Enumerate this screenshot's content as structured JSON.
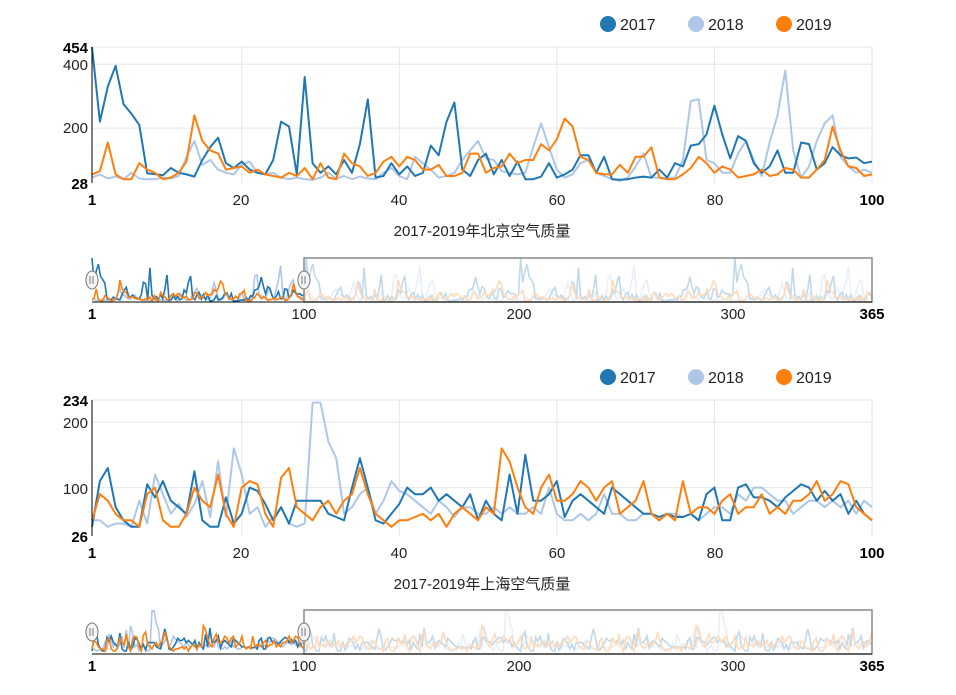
{
  "colors": {
    "2017": "#1f77b4",
    "2018": "#aec7e8",
    "2019": "#ff7f0e"
  },
  "chart_data": [
    {
      "type": "line",
      "title": "2017-2019年北京空气质量",
      "legend": [
        "2017",
        "2018",
        "2019"
      ],
      "xlim": [
        1,
        100
      ],
      "ylim": [
        28,
        454
      ],
      "x_ticks": [
        "1",
        "20",
        "40",
        "60",
        "80",
        "100"
      ],
      "y_ticks": [
        "28",
        "200",
        "400",
        "454"
      ],
      "brush": {
        "range": [
          1,
          365
        ],
        "selection": [
          1,
          100
        ],
        "ticks": [
          "1",
          "100",
          "200",
          "300",
          "365"
        ]
      },
      "series": [
        {
          "name": "2017",
          "values": [
            454,
            220,
            330,
            395,
            275,
            245,
            210,
            58,
            56,
            52,
            75,
            60,
            55,
            48,
            100,
            140,
            170,
            90,
            75,
            95,
            70,
            60,
            55,
            100,
            220,
            205,
            55,
            360,
            90,
            60,
            80,
            55,
            100,
            60,
            150,
            290,
            45,
            50,
            90,
            55,
            80,
            50,
            60,
            145,
            115,
            220,
            280,
            70,
            50,
            100,
            120,
            55,
            100,
            50,
            95,
            40,
            40,
            48,
            90,
            45,
            55,
            70,
            115,
            115,
            60,
            110,
            40,
            38,
            40,
            45,
            48,
            45,
            70,
            45,
            90,
            80,
            145,
            150,
            180,
            270,
            180,
            105,
            175,
            160,
            90,
            60,
            80,
            130,
            60,
            60,
            155,
            150,
            70,
            90,
            140,
            115,
            105,
            108,
            90,
            95
          ]
        },
        {
          "name": "2018",
          "values": [
            45,
            55,
            42,
            48,
            40,
            60,
            42,
            40,
            40,
            45,
            42,
            50,
            110,
            160,
            85,
            100,
            70,
            60,
            55,
            85,
            95,
            60,
            55,
            60,
            45,
            40,
            45,
            40,
            38,
            45,
            60,
            42,
            50,
            40,
            48,
            42,
            40,
            60,
            75,
            50,
            40,
            110,
            90,
            70,
            45,
            50,
            60,
            100,
            130,
            160,
            105,
            100,
            65,
            60,
            55,
            60,
            140,
            215,
            140,
            70,
            45,
            55,
            90,
            100,
            60,
            50,
            40,
            35,
            45,
            80,
            120,
            45,
            45,
            42,
            45,
            100,
            285,
            290,
            100,
            90,
            60,
            60,
            120,
            160,
            100,
            50,
            155,
            240,
            380,
            130,
            45,
            80,
            160,
            215,
            240,
            110,
            80,
            60,
            70,
            60
          ]
        },
        {
          "name": "2019",
          "values": [
            55,
            65,
            155,
            55,
            40,
            40,
            90,
            70,
            60,
            40,
            45,
            60,
            95,
            240,
            160,
            130,
            120,
            70,
            75,
            80,
            60,
            70,
            55,
            50,
            45,
            60,
            50,
            75,
            40,
            90,
            45,
            40,
            120,
            90,
            80,
            50,
            60,
            95,
            110,
            80,
            110,
            100,
            70,
            70,
            85,
            50,
            50,
            60,
            120,
            120,
            60,
            75,
            80,
            120,
            90,
            100,
            100,
            150,
            130,
            165,
            230,
            205,
            110,
            100,
            60,
            55,
            55,
            85,
            60,
            110,
            110,
            140,
            45,
            40,
            40,
            55,
            75,
            110,
            90,
            60,
            80,
            70,
            45,
            50,
            55,
            70,
            50,
            55,
            75,
            70,
            45,
            45,
            70,
            100,
            205,
            130,
            80,
            75,
            50,
            55
          ]
        }
      ]
    },
    {
      "type": "line",
      "title": "2017-2019年上海空气质量",
      "legend": [
        "2017",
        "2018",
        "2019"
      ],
      "xlim": [
        1,
        100
      ],
      "ylim": [
        26,
        234
      ],
      "x_ticks": [
        "1",
        "20",
        "40",
        "60",
        "80",
        "100"
      ],
      "y_ticks": [
        "26",
        "100",
        "200",
        "234"
      ],
      "brush": {
        "range": [
          1,
          365
        ],
        "selection": [
          1,
          100
        ],
        "ticks": [
          "1",
          "100",
          "200",
          "300",
          "365"
        ]
      },
      "series": [
        {
          "name": "2017",
          "values": [
            40,
            110,
            130,
            70,
            50,
            40,
            40,
            105,
            85,
            110,
            80,
            70,
            60,
            125,
            50,
            40,
            40,
            85,
            45,
            60,
            100,
            95,
            75,
            50,
            70,
            45,
            80,
            80,
            80,
            80,
            60,
            55,
            50,
            100,
            145,
            100,
            50,
            45,
            60,
            75,
            100,
            90,
            90,
            100,
            80,
            90,
            80,
            70,
            90,
            50,
            80,
            60,
            50,
            120,
            60,
            150,
            80,
            80,
            90,
            110,
            55,
            80,
            90,
            80,
            70,
            60,
            100,
            90,
            80,
            70,
            60,
            60,
            55,
            60,
            55,
            55,
            60,
            50,
            90,
            100,
            50,
            50,
            100,
            105,
            85,
            85,
            80,
            70,
            85,
            95,
            105,
            100,
            80,
            95,
            80,
            90,
            60,
            80,
            60,
            50
          ]
        },
        {
          "name": "2018",
          "values": [
            50,
            50,
            40,
            45,
            45,
            40,
            80,
            45,
            120,
            90,
            60,
            75,
            55,
            75,
            110,
            55,
            140,
            55,
            160,
            120,
            60,
            70,
            40,
            55,
            70,
            45,
            40,
            45,
            230,
            230,
            170,
            145,
            60,
            70,
            90,
            100,
            60,
            80,
            110,
            95,
            90,
            80,
            70,
            60,
            80,
            70,
            55,
            70,
            70,
            60,
            60,
            70,
            60,
            70,
            60,
            60,
            70,
            60,
            100,
            60,
            50,
            50,
            60,
            50,
            60,
            90,
            60,
            60,
            50,
            50,
            60,
            60,
            50,
            60,
            60,
            55,
            60,
            50,
            60,
            70,
            70,
            60,
            90,
            80,
            100,
            100,
            90,
            80,
            80,
            60,
            70,
            80,
            80,
            70,
            80,
            70,
            80,
            60,
            80,
            70
          ]
        },
        {
          "name": "2019",
          "values": [
            50,
            90,
            80,
            60,
            50,
            50,
            40,
            90,
            100,
            50,
            40,
            40,
            60,
            100,
            80,
            70,
            120,
            60,
            40,
            100,
            110,
            105,
            60,
            40,
            115,
            130,
            70,
            60,
            50,
            70,
            80,
            60,
            80,
            90,
            130,
            90,
            60,
            50,
            40,
            50,
            50,
            55,
            60,
            50,
            60,
            40,
            60,
            70,
            60,
            50,
            70,
            60,
            160,
            140,
            100,
            70,
            60,
            100,
            120,
            80,
            80,
            90,
            110,
            100,
            80,
            100,
            110,
            60,
            70,
            80,
            110,
            60,
            50,
            60,
            50,
            110,
            60,
            70,
            70,
            60,
            80,
            90,
            60,
            70,
            70,
            90,
            60,
            70,
            60,
            80,
            80,
            90,
            110,
            80,
            90,
            110,
            105,
            70,
            60,
            50
          ]
        }
      ]
    }
  ]
}
